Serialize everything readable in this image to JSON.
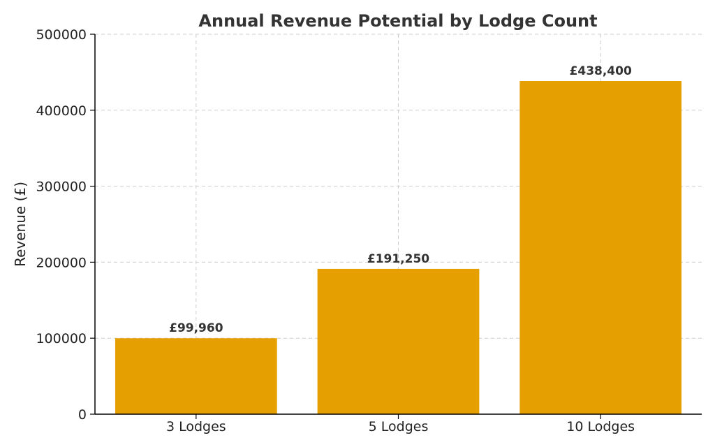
{
  "chart_data": {
    "type": "bar",
    "title": "Annual Revenue Potential by Lodge Count",
    "xlabel": "",
    "ylabel": "Revenue (£)",
    "categories": [
      "3 Lodges",
      "5 Lodges",
      "10 Lodges"
    ],
    "values": [
      99960,
      191250,
      438400
    ],
    "data_labels": [
      "£99,960",
      "£191,250",
      "£438,400"
    ],
    "ylim": [
      0,
      500000
    ],
    "yticks": [
      0,
      100000,
      200000,
      300000,
      400000,
      500000
    ],
    "ytick_labels": [
      "0",
      "100000",
      "200000",
      "300000",
      "400000",
      "500000"
    ],
    "bar_color": "#E69F00",
    "grid": true,
    "legend": "none"
  }
}
